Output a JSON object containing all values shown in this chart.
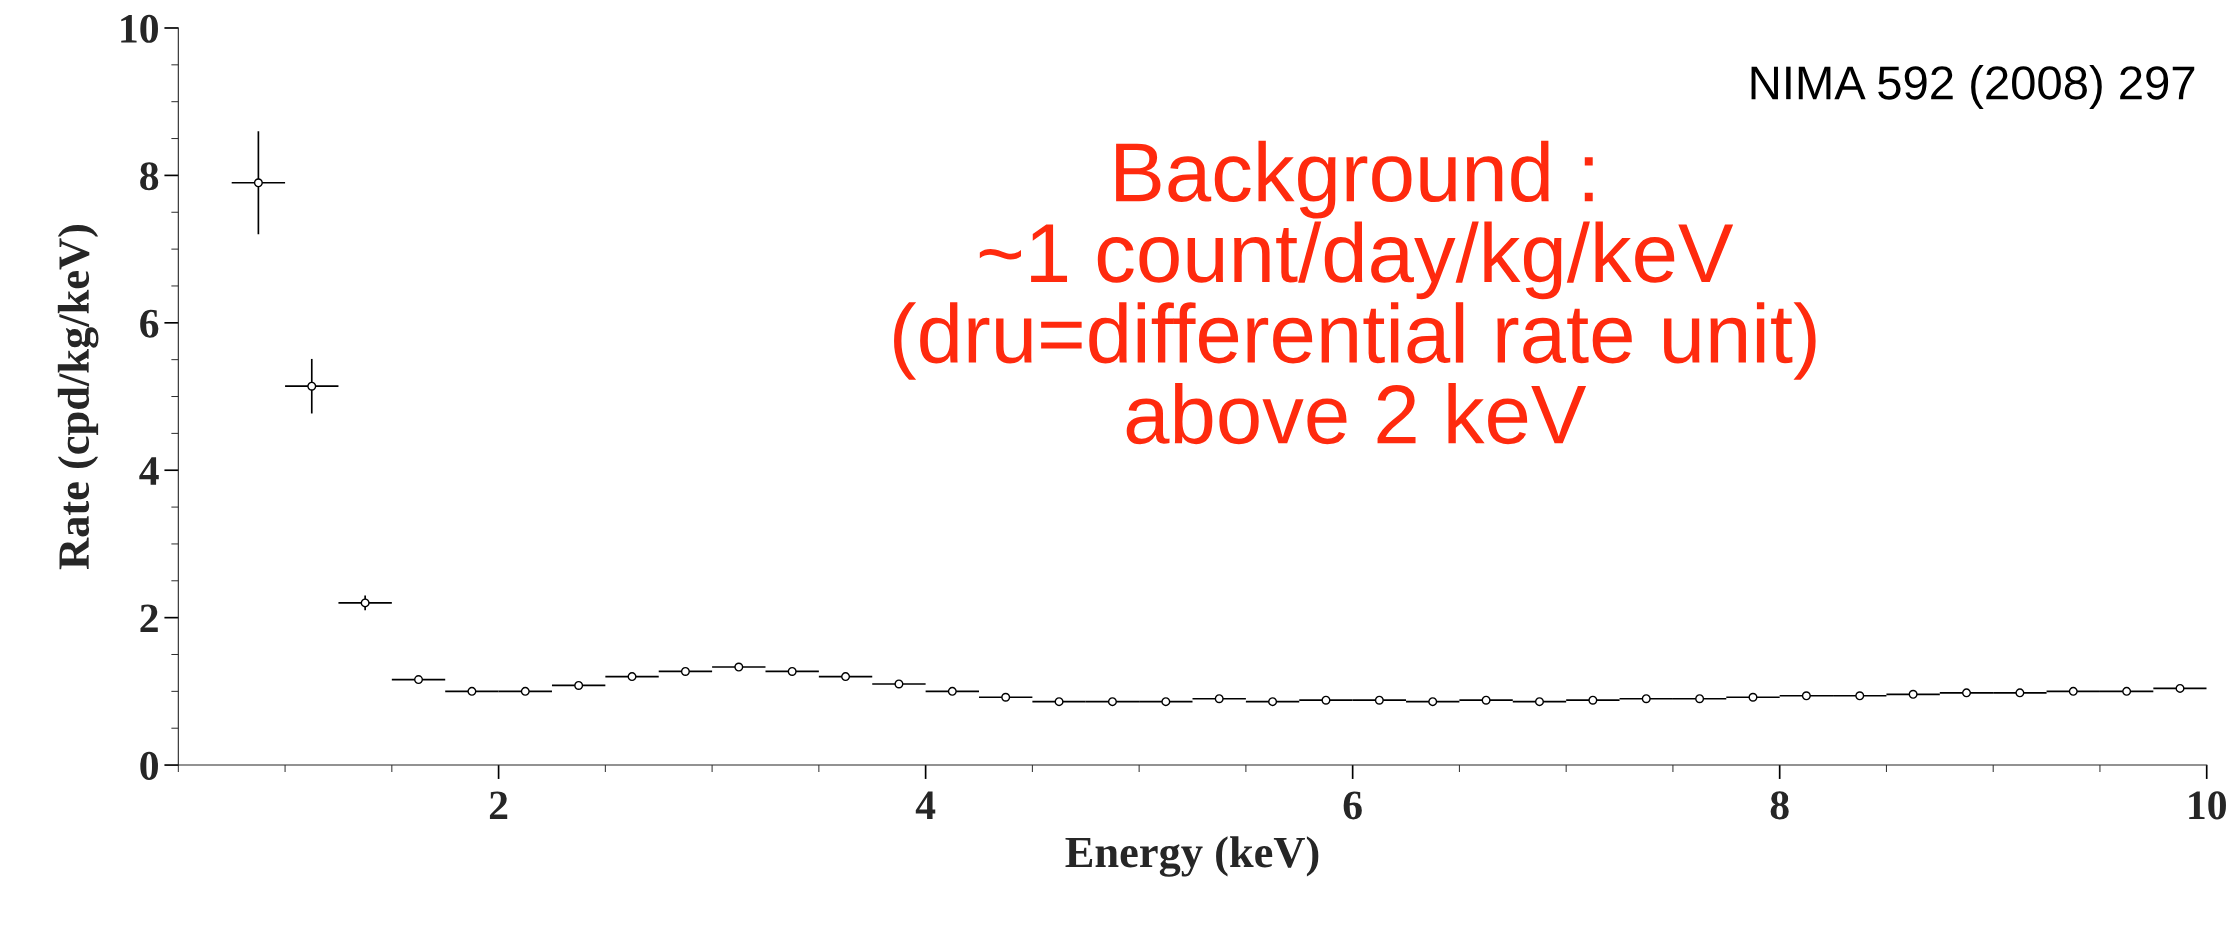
{
  "chart_data": {
    "type": "scatter",
    "xlabel": "Energy (keV)",
    "ylabel": "Rate (cpd/kg/keV)",
    "x": [
      0.875,
      1.125,
      1.375,
      1.625,
      1.875,
      2.125,
      2.375,
      2.625,
      2.875,
      3.125,
      3.375,
      3.625,
      3.875,
      4.125,
      4.375,
      4.625,
      4.875,
      5.125,
      5.375,
      5.625,
      5.875,
      6.125,
      6.375,
      6.625,
      6.875,
      7.125,
      7.375,
      7.625,
      7.875,
      8.125,
      8.375,
      8.625,
      8.875,
      9.125,
      9.375,
      9.625,
      9.875
    ],
    "series": [
      {
        "color": "#000000",
        "values": [
          7.9,
          5.14,
          2.2,
          1.16,
          1.0,
          1.0,
          1.08,
          1.2,
          1.27,
          1.33,
          1.27,
          1.2,
          1.1,
          1.0,
          0.92,
          0.86,
          0.86,
          0.86,
          0.9,
          0.86,
          0.88,
          0.88,
          0.86,
          0.88,
          0.86,
          0.88,
          0.9,
          0.9,
          0.92,
          0.94,
          0.94,
          0.96,
          0.98,
          0.98,
          1.0,
          1.0,
          1.04
        ],
        "errors": [
          0.7,
          0.37,
          0.1,
          null,
          null,
          null,
          null,
          null,
          null,
          null,
          null,
          null,
          null,
          null,
          null,
          null,
          null,
          null,
          null,
          null,
          null,
          null,
          null,
          null,
          null,
          null,
          null,
          null,
          null,
          null,
          null,
          null,
          null,
          null,
          null,
          null,
          null
        ],
        "xerrors": [
          0.125,
          0.125,
          0.125,
          0.125,
          0.125,
          0.125,
          0.125,
          0.125,
          0.125,
          0.125,
          0.125,
          0.125,
          0.125,
          0.125,
          0.125,
          0.125,
          0.125,
          0.125,
          0.125,
          0.125,
          0.125,
          0.125,
          0.125,
          0.125,
          0.125,
          0.125,
          0.125,
          0.125,
          0.125,
          0.125,
          0.125,
          0.125,
          0.125,
          0.125,
          0.125,
          0.125,
          0.125
        ]
      }
    ],
    "xlim": [
      0.5,
      10
    ],
    "xticks": [
      2,
      4,
      6,
      8,
      10
    ],
    "ylim": [
      0,
      10
    ],
    "yticks": [
      0,
      2,
      4,
      6,
      8,
      10
    ],
    "marker": "circle",
    "grid": false,
    "legend": false,
    "annotations": [
      "NIMA 592 (2008) 297",
      "Background :\n~1 count/day/kg/keV\n(dru=differential rate unit)\nabove 2 keV"
    ]
  }
}
